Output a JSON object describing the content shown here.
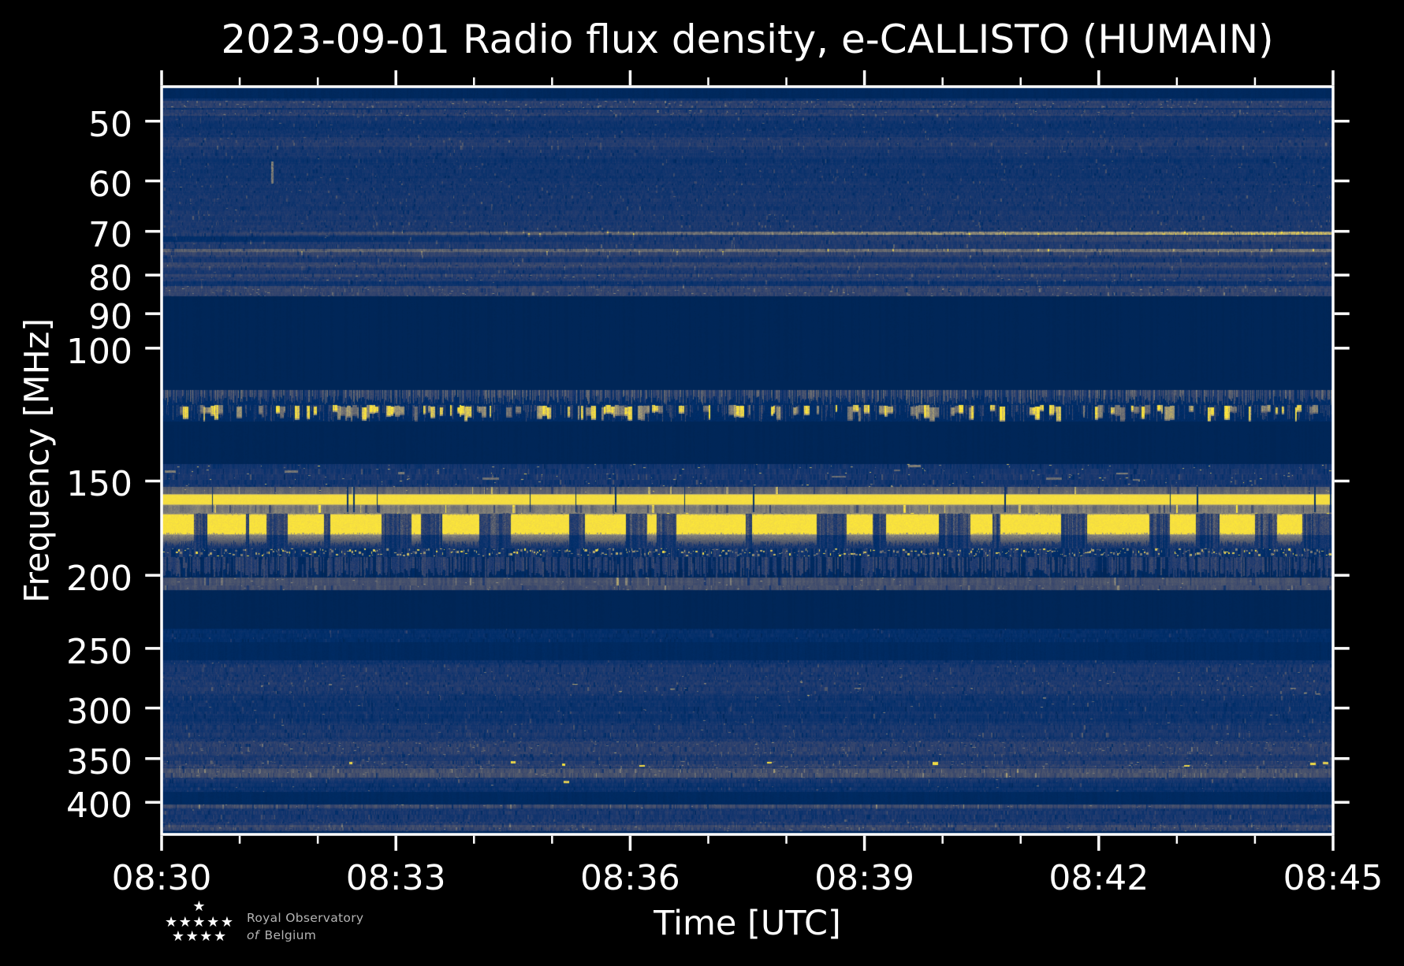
{
  "chart_data": {
    "type": "heatmap",
    "title": "2023-09-01 Radio flux density, e-CALLISTO (HUMAIN)",
    "xlabel": "Time [UTC]",
    "ylabel": "Frequency [MHz]",
    "x_tick_labels": [
      "08:30",
      "08:33",
      "08:36",
      "08:39",
      "08:42",
      "08:45"
    ],
    "x_minor_ticks_per_major": 3,
    "x_range_minutes": [
      0,
      15
    ],
    "y_tick_labels": [
      50,
      60,
      70,
      80,
      90,
      100,
      150,
      200,
      250,
      300,
      350,
      400
    ],
    "y_range_mhz": [
      45,
      441.25
    ],
    "y_scale": "log",
    "y_axis_inverted": true,
    "colormap": {
      "name": "cividis",
      "stops": [
        "#00224e",
        "#002e6a",
        "#1a386f",
        "#32436d",
        "#434e6c",
        "#535a6d",
        "#61656f",
        "#6f7073",
        "#7d7c78",
        "#8c8878",
        "#9b9476",
        "#aba072",
        "#bcae6c",
        "#cdbb63",
        "#dec958",
        "#f0d846",
        "#fee838"
      ]
    },
    "seed": 20230901,
    "colors": {
      "background": "#000000",
      "foreground": "#ffffff",
      "logo_text": "#b4b4b4",
      "axes_color": "#ffffff"
    },
    "background_level": 0.02,
    "needles": {
      "n": 14,
      "f": [
        152.9,
        164.8
      ],
      "v": 0.08,
      "w": [
        1,
        2
      ]
    },
    "bands": [
      {
        "kind": "flat",
        "f": [
          45,
          46.7
        ],
        "level": 0.035,
        "note": "top edge rows"
      },
      {
        "kind": "noise",
        "f": [
          46.7,
          85.4
        ],
        "base": 0.115,
        "colVar": 0.15,
        "rowVar": 0.22,
        "px": [
          1,
          2
        ],
        "chunk": [
          2,
          5
        ],
        "speckles": {
          "density": 0.0007,
          "v": [
            0.22,
            0.38
          ],
          "w": [
            1,
            3
          ],
          "h": [
            1,
            1
          ]
        },
        "bright_rows": [
          {
            "f": [
              47.0,
              48.0
            ],
            "gain": 1.9,
            "speckle": 0.5
          },
          {
            "f": [
              48.2,
              49.2
            ],
            "gain": 1.6,
            "speckle": 0.3
          },
          {
            "f": [
              52.5,
              54.2
            ],
            "gain": 1.3
          },
          {
            "f": [
              57.0,
              58.5
            ],
            "gain": 1.15
          },
          {
            "f": [
              70.0,
              70.7
            ],
            "gain": 4.2,
            "ramp": [
              0.24,
              1.35
            ]
          },
          {
            "f": [
              71.0,
              72.2
            ],
            "gain": 1.5,
            "ramp": [
              0.3,
              1.0
            ]
          },
          {
            "f": [
              73.8,
              74.5
            ],
            "gain": 3.0,
            "ramp": [
              0.8,
              1.05
            ]
          },
          {
            "f": [
              74.6,
              75.6
            ],
            "gain": 1.4
          },
          {
            "f": [
              77.0,
              78.3
            ],
            "gain": 1.45
          },
          {
            "f": [
              79.8,
              81.5
            ],
            "gain": 1.6,
            "speckle": 0.2
          },
          {
            "f": [
              82.8,
              85.4
            ],
            "gain": 2.1,
            "speckle": 0.45
          }
        ],
        "events": [
          {
            "t": 1.4,
            "f": [
              56.5,
              60.5
            ],
            "w": 3,
            "v": 0.5
          }
        ],
        "note": "45-85 MHz galactic background band"
      },
      {
        "kind": "flat",
        "f": [
          85.4,
          110.5
        ],
        "level": 0.02,
        "note": "FM broadcast gap"
      },
      {
        "kind": "ragged",
        "f": [
          113.6,
          119.0
        ],
        "base": 0.19,
        "amp": 0.05,
        "fill": [
          0.35,
          1.0
        ],
        "note": "aeronautical band noise fringe"
      },
      {
        "kind": "airband",
        "f": [
          119.0,
          125.0
        ],
        "base": 0.06,
        "burst_v": [
          0.45,
          1.0
        ],
        "burst_p": 0.055,
        "note": "airband voice blobs"
      },
      {
        "kind": "flat",
        "f": [
          126.4,
          142.6
        ],
        "level": 0.02
      },
      {
        "kind": "noise",
        "f": [
          142.6,
          152.9
        ],
        "base": 0.115,
        "colVar": 0.2,
        "rowVar": 0.2,
        "px": [
          1,
          2
        ],
        "chunk": [
          3,
          7
        ],
        "speckles": {
          "density": 0.004,
          "v": [
            0.35,
            0.8
          ],
          "w": [
            1,
            3
          ],
          "h": [
            1,
            1
          ]
        },
        "blobs": {
          "count": 10,
          "v": [
            0.4,
            0.55
          ],
          "w": [
            8,
            34
          ],
          "h": [
            2,
            4
          ]
        },
        "note": "2 m band noise"
      },
      {
        "kind": "noise",
        "f": [
          152.9,
          155.9
        ],
        "base": 0.37,
        "colVar": 0.1,
        "rowVar": 0.1,
        "px": [
          1,
          3
        ],
        "chunk": [
          8,
          14
        ],
        "speckles": {
          "density": 0.004,
          "v": [
            0.55,
            0.75
          ],
          "w": [
            1,
            2
          ],
          "h": [
            1,
            1
          ]
        }
      },
      {
        "kind": "solid",
        "f": [
          155.9,
          161.6
        ],
        "level": 0.98,
        "note": "continuous carrier line ~158 MHz"
      },
      {
        "kind": "noise",
        "f": [
          161.6,
          165.6
        ],
        "base": 0.5,
        "colVar": 0.1,
        "rowVar": 0.08,
        "px": [
          1,
          3
        ],
        "chunk": [
          8,
          14
        ]
      },
      {
        "kind": "blocks",
        "f": [
          165.6,
          176.7
        ],
        "fringe_f": [
          176.7,
          184.1
        ],
        "bg": 0.24,
        "fill": [
          8,
          90
        ],
        "gap": [
          4,
          42
        ],
        "v": 1.0,
        "fringe_v": 0.52,
        "note": "intermittent strong transmitter ~170 MHz"
      },
      {
        "kind": "specklerow",
        "f": [
          184.1,
          189.1
        ],
        "base": 0.1,
        "density": 0.42,
        "v": [
          0.35,
          0.95
        ]
      },
      {
        "kind": "strands",
        "f": [
          189.1,
          201.4
        ],
        "base": 0.13,
        "amp": 0.1,
        "density": 0.7
      },
      {
        "kind": "noise",
        "f": [
          201.4,
          209.3
        ],
        "base": 0.27,
        "colVar": 0.12,
        "rowVar": 0.1,
        "px": [
          1,
          3
        ],
        "chunk": [
          8,
          14
        ],
        "speckles": {
          "density": 0.005,
          "v": [
            0.4,
            0.6
          ],
          "w": [
            1,
            3
          ],
          "h": [
            1,
            1
          ]
        }
      },
      {
        "kind": "flat",
        "f": [
          209.3,
          235.5
        ],
        "level": 0.02
      },
      {
        "kind": "noise",
        "f": [
          235.5,
          245.3
        ],
        "base": 0.085,
        "colVar": 0.2,
        "rowVar": 0.25,
        "px": [
          1,
          2
        ],
        "chunk": [
          2,
          6
        ]
      },
      {
        "kind": "flat",
        "f": [
          245.3,
          259.2
        ],
        "level": 0.04
      },
      {
        "kind": "noise",
        "f": [
          259.2,
          387.4
        ],
        "base": 0.105,
        "colVar": 0.18,
        "rowVar": 0.26,
        "px": [
          1,
          2
        ],
        "chunk": [
          2,
          6
        ],
        "speckles": {
          "density": 0.001,
          "v": [
            0.3,
            0.5
          ],
          "w": [
            1,
            3
          ],
          "h": [
            1,
            1
          ]
        },
        "bright_rows": [
          {
            "f": [
              276.6,
              291.0
            ],
            "gain": 1.05,
            "dash": {
              "density": 0.01,
              "v": [
                0.45,
                0.85
              ],
              "w": [
                3,
                10
              ]
            }
          },
          {
            "f": [
              331.9,
              346.7
            ],
            "gain": 1.3,
            "speckle": 0.3
          },
          {
            "f": [
              352.6,
              360.0
            ],
            "gain": 1.4,
            "speckle": 0.5,
            "ydots": 0.008
          },
          {
            "f": [
              360.5,
              371.0
            ],
            "gain": 2.0,
            "speckle": 0.3
          },
          {
            "f": [
              373.0,
              387.4
            ],
            "gain": 1.0,
            "ydots": 0.002
          }
        ],
        "note": "UHF band noise"
      },
      {
        "kind": "flat",
        "f": [
          387.4,
          402.6
        ],
        "level": 0.04
      },
      {
        "kind": "noise",
        "f": [
          402.6,
          437.2
        ],
        "base": 0.11,
        "colVar": 0.2,
        "rowVar": 0.28,
        "px": [
          1,
          2
        ],
        "chunk": [
          2,
          6
        ],
        "bright_rows": [
          {
            "f": [
              402.6,
              408.0
            ],
            "gain": 1.7,
            "speckle": 0.4
          },
          {
            "f": [
              429.0,
              437.2
            ],
            "gain": 1.7,
            "speckle": 0.4
          }
        ]
      },
      {
        "kind": "flat",
        "f": [
          437.2,
          441.25
        ],
        "level": 0.03
      }
    ]
  },
  "logo": {
    "line1": "Royal Observatory",
    "line2_italic": "of",
    "line2_rest": "Belgium",
    "star_rows": [
      1,
      5,
      4
    ],
    "star_glyph": "★"
  }
}
